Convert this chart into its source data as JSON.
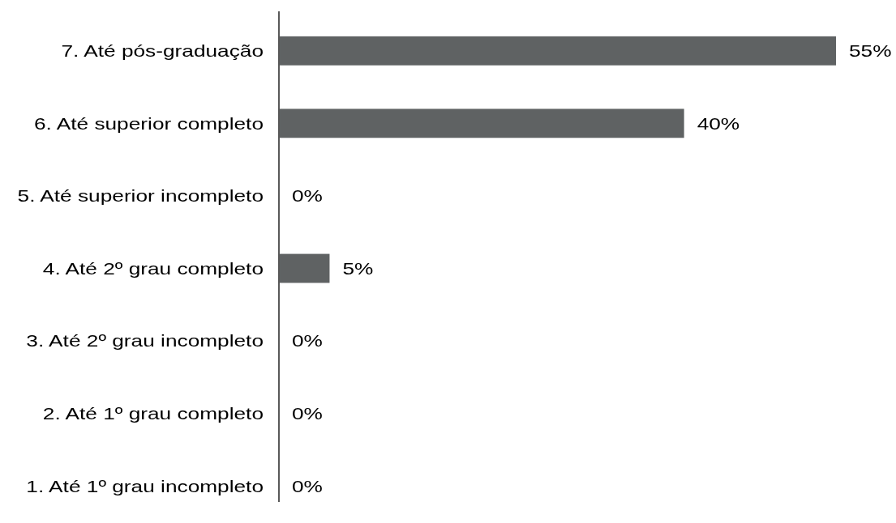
{
  "chart_data": {
    "type": "bar",
    "orientation": "horizontal",
    "categories": [
      "7. Até pós-graduação",
      "6. Até superior completo",
      "5. Até superior incompleto",
      "4. Até 2º grau completo",
      "3. Até 2º grau incompleto",
      "2. Até 1º grau completo",
      "1. Até 1º grau incompleto"
    ],
    "values": [
      55,
      40,
      0,
      5,
      0,
      0,
      0
    ],
    "value_labels": [
      "55%",
      "40%",
      "0%",
      "5%",
      "0%",
      "0%",
      "0%"
    ],
    "color": "#5f6263"
  }
}
